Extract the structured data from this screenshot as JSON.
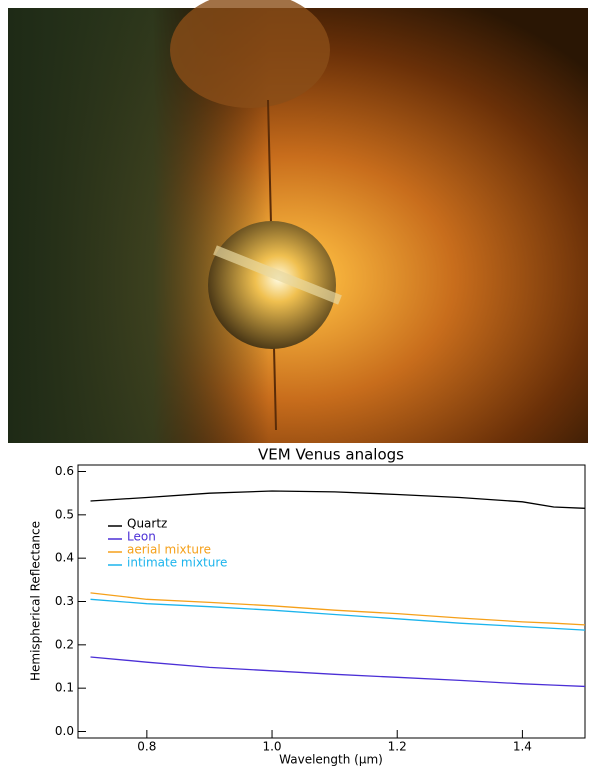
{
  "chart_data": {
    "type": "line",
    "title": "VEM Venus analogs",
    "x_label": "Wavelength (µm)",
    "y_label": "Hemispherical Reflectance",
    "x": [
      0.71,
      0.8,
      0.9,
      1.0,
      1.1,
      1.2,
      1.3,
      1.4,
      1.45,
      1.5
    ],
    "series": [
      {
        "name": "Quartz",
        "color": "#000000",
        "values": [
          0.532,
          0.54,
          0.55,
          0.555,
          0.553,
          0.547,
          0.54,
          0.53,
          0.518,
          0.515
        ]
      },
      {
        "name": "Leon",
        "color": "#4b2fd6",
        "values": [
          0.172,
          0.16,
          0.148,
          0.14,
          0.132,
          0.125,
          0.118,
          0.11,
          0.107,
          0.104
        ]
      },
      {
        "name": "aerial mixture",
        "color": "#f5a01a",
        "values": [
          0.32,
          0.305,
          0.298,
          0.29,
          0.28,
          0.272,
          0.262,
          0.253,
          0.25,
          0.246
        ]
      },
      {
        "name": "intimate mixture",
        "color": "#1cb4ec",
        "values": [
          0.305,
          0.295,
          0.288,
          0.28,
          0.27,
          0.26,
          0.25,
          0.242,
          0.238,
          0.234
        ]
      }
    ],
    "xlim": [
      0.69,
      1.5
    ],
    "ylim": [
      -0.015,
      0.615
    ],
    "xticks": [
      0.8,
      {
        "value": 1,
        "label": "1.0"
      },
      1.2,
      1.4
    ],
    "yticks": [
      {
        "value": 0,
        "label": "0.0"
      },
      0.1,
      0.2,
      0.3,
      0.4,
      0.5,
      0.6
    ],
    "legend": "upper-left"
  }
}
